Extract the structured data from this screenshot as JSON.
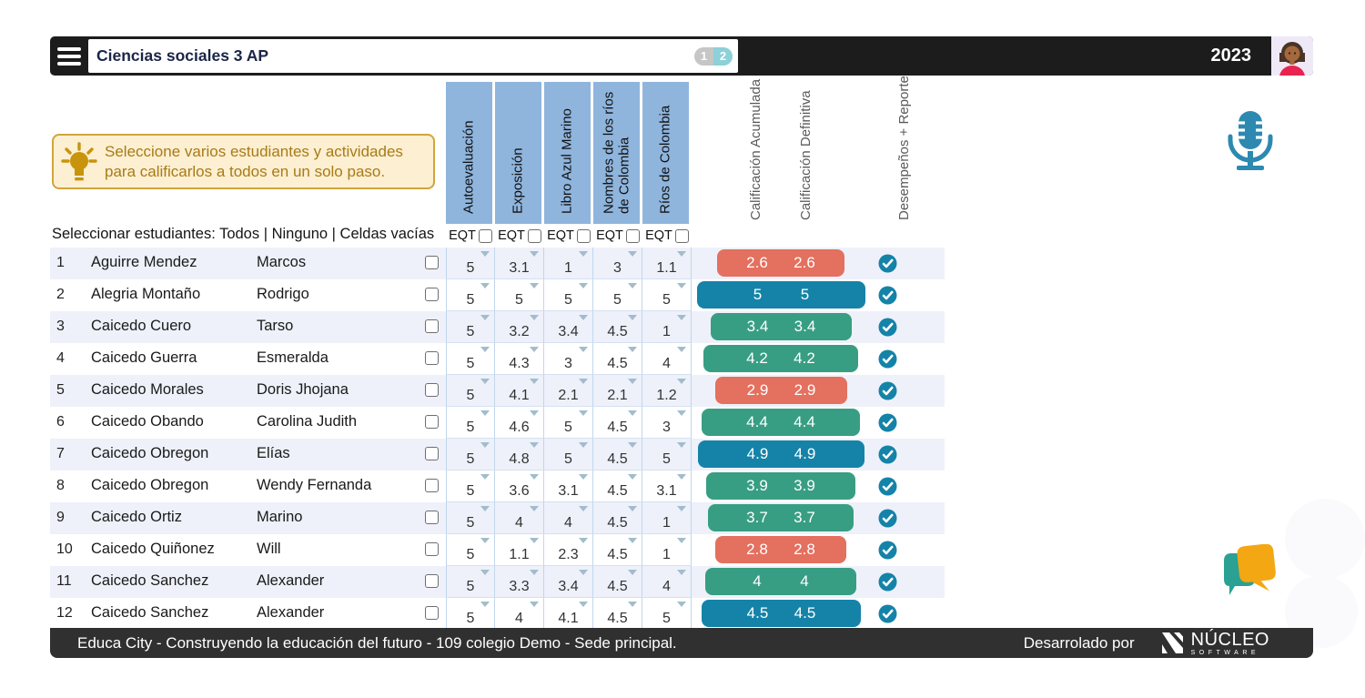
{
  "topbar": {
    "title": "Ciencias sociales 3 AP",
    "pages": [
      "1",
      "2"
    ],
    "year": "2023"
  },
  "tip": {
    "line1": "Seleccione varios estudiantes y actividades",
    "line2": "para calificarlos a todos en un solo paso."
  },
  "select_row": {
    "label": "Seleccionar estudiantes:",
    "links": [
      "Todos",
      "Ninguno",
      "Celdas vacías"
    ],
    "sep": "|"
  },
  "activities": [
    {
      "name": "Autoevaluación",
      "eqt": "EQT"
    },
    {
      "name": "Exposición",
      "eqt": "EQT"
    },
    {
      "name": "Libro Azul Marino",
      "eqt": "EQT"
    },
    {
      "name": "Nombres de los ríos de Colombia",
      "eqt": "EQT"
    },
    {
      "name": "Ríos de Colombia",
      "eqt": "EQT"
    }
  ],
  "summary": [
    "Calificación Acumulada",
    "Calificación Definitiva",
    "Desempeños + Reporte"
  ],
  "status_colors": {
    "red": "#e4705f",
    "green": "#389e83",
    "blue": "#1583a8"
  },
  "students": [
    {
      "n": "1",
      "last": "Aguirre Mendez",
      "first": "Marcos",
      "grades": [
        "5",
        "3.1",
        "1",
        "3",
        "1.1"
      ],
      "acumulada": "2.6",
      "definitiva": "2.6",
      "status": "red"
    },
    {
      "n": "2",
      "last": "Alegria Montaño",
      "first": "Rodrigo",
      "grades": [
        "5",
        "5",
        "5",
        "5",
        "5"
      ],
      "acumulada": "5",
      "definitiva": "5",
      "status": "blue"
    },
    {
      "n": "3",
      "last": "Caicedo Cuero",
      "first": "Tarso",
      "grades": [
        "5",
        "3.2",
        "3.4",
        "4.5",
        "1"
      ],
      "acumulada": "3.4",
      "definitiva": "3.4",
      "status": "green"
    },
    {
      "n": "4",
      "last": "Caicedo Guerra",
      "first": "Esmeralda",
      "grades": [
        "5",
        "4.3",
        "3",
        "4.5",
        "4"
      ],
      "acumulada": "4.2",
      "definitiva": "4.2",
      "status": "green"
    },
    {
      "n": "5",
      "last": "Caicedo Morales",
      "first": "Doris Jhojana",
      "grades": [
        "5",
        "4.1",
        "2.1",
        "2.1",
        "1.2"
      ],
      "acumulada": "2.9",
      "definitiva": "2.9",
      "status": "red"
    },
    {
      "n": "6",
      "last": "Caicedo Obando",
      "first": "Carolina Judith",
      "grades": [
        "5",
        "4.6",
        "5",
        "4.5",
        "3"
      ],
      "acumulada": "4.4",
      "definitiva": "4.4",
      "status": "green"
    },
    {
      "n": "7",
      "last": "Caicedo Obregon",
      "first": "Elías",
      "grades": [
        "5",
        "4.8",
        "5",
        "4.5",
        "5"
      ],
      "acumulada": "4.9",
      "definitiva": "4.9",
      "status": "blue"
    },
    {
      "n": "8",
      "last": "Caicedo Obregon",
      "first": "Wendy Fernanda",
      "grades": [
        "5",
        "3.6",
        "3.1",
        "4.5",
        "3.1"
      ],
      "acumulada": "3.9",
      "definitiva": "3.9",
      "status": "green"
    },
    {
      "n": "9",
      "last": "Caicedo Ortiz",
      "first": "Marino",
      "grades": [
        "5",
        "4",
        "4",
        "4.5",
        "1"
      ],
      "acumulada": "3.7",
      "definitiva": "3.7",
      "status": "green"
    },
    {
      "n": "10",
      "last": "Caicedo Quiñonez",
      "first": "Will",
      "grades": [
        "5",
        "1.1",
        "2.3",
        "4.5",
        "1"
      ],
      "acumulada": "2.8",
      "definitiva": "2.8",
      "status": "red"
    },
    {
      "n": "11",
      "last": "Caicedo Sanchez",
      "first": "Alexander",
      "grades": [
        "5",
        "3.3",
        "3.4",
        "4.5",
        "4"
      ],
      "acumulada": "4",
      "definitiva": "4",
      "status": "green"
    },
    {
      "n": "12",
      "last": "Caicedo Sanchez",
      "first": "Alexander",
      "grades": [
        "5",
        "4",
        "4.1",
        "4.5",
        "5"
      ],
      "acumulada": "4.5",
      "definitiva": "4.5",
      "status": "blue"
    }
  ],
  "footer": {
    "left": "Educa City - Construyendo la educación del futuro - 109 colegio Demo - Sede principal.",
    "developed_by": "Desarrolado por",
    "brand": "NÚCLEO",
    "brand_sub": "SOFTWARE"
  }
}
